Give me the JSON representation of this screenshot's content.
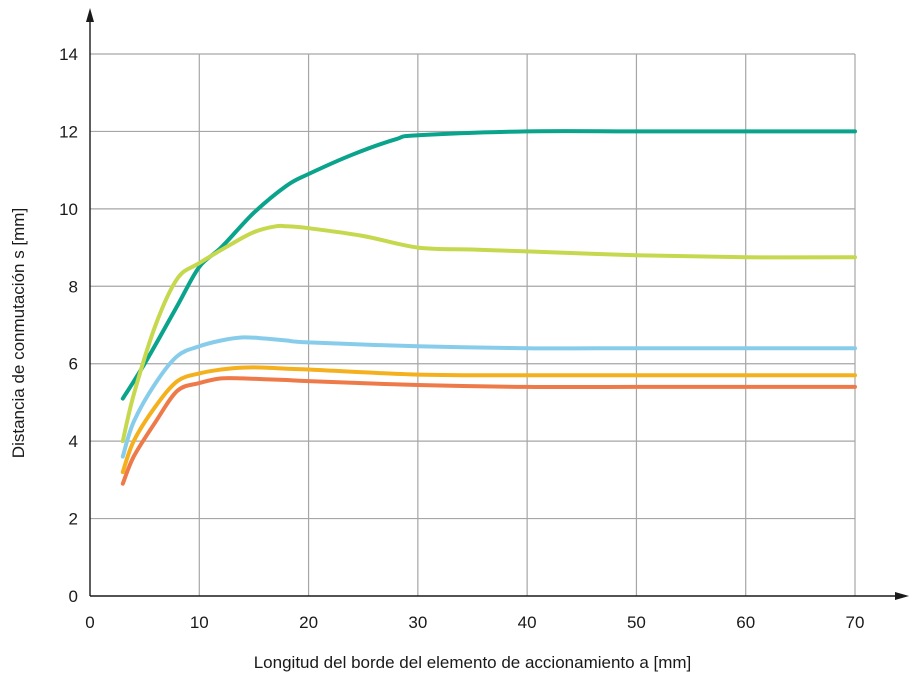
{
  "chart_data": {
    "type": "line",
    "title": "",
    "xlabel": "Longitud del borde del elemento de accionamiento a [mm]",
    "ylabel": "Distancia de conmutación s [mm]",
    "xlim": [
      0,
      70
    ],
    "ylim": [
      0,
      14
    ],
    "x_ticks": [
      0,
      10,
      20,
      30,
      40,
      50,
      60,
      70
    ],
    "y_ticks": [
      0,
      2,
      4,
      6,
      8,
      10,
      12,
      14
    ],
    "grid": true,
    "legend": "none",
    "series": [
      {
        "color": "#0aa38c",
        "x": [
          3,
          5,
          8,
          10,
          12,
          15,
          18,
          20,
          24,
          28,
          30,
          40,
          50,
          60,
          70
        ],
        "y": [
          5.1,
          6.0,
          7.5,
          8.5,
          9.0,
          9.9,
          10.6,
          10.9,
          11.4,
          11.8,
          11.9,
          12.0,
          12.0,
          12.0,
          12.0
        ]
      },
      {
        "color": "#c6d84e",
        "x": [
          3,
          4,
          6,
          8,
          10,
          13,
          15,
          17,
          18,
          20,
          25,
          30,
          35,
          40,
          50,
          60,
          70
        ],
        "y": [
          4.0,
          5.2,
          7.0,
          8.2,
          8.6,
          9.1,
          9.4,
          9.55,
          9.55,
          9.5,
          9.3,
          9.0,
          8.95,
          8.9,
          8.8,
          8.75,
          8.75
        ]
      },
      {
        "color": "#87cdeb",
        "x": [
          3,
          4,
          6,
          8,
          10,
          12,
          14,
          16,
          18,
          20,
          30,
          40,
          50,
          60,
          70
        ],
        "y": [
          3.6,
          4.5,
          5.5,
          6.2,
          6.45,
          6.6,
          6.68,
          6.65,
          6.6,
          6.55,
          6.45,
          6.4,
          6.4,
          6.4,
          6.4
        ],
        "note": ""
      },
      {
        "color": "#f5b01e",
        "x": [
          3,
          4,
          6,
          8,
          10,
          12,
          14,
          16,
          18,
          20,
          30,
          40,
          50,
          60,
          70
        ],
        "y": [
          3.2,
          4.0,
          4.9,
          5.55,
          5.75,
          5.85,
          5.9,
          5.9,
          5.87,
          5.85,
          5.72,
          5.7,
          5.7,
          5.7,
          5.7
        ]
      },
      {
        "color": "#ee7a4a",
        "x": [
          3,
          4,
          6,
          8,
          10,
          12,
          14,
          16,
          18,
          20,
          30,
          40,
          50,
          60,
          70
        ],
        "y": [
          2.9,
          3.6,
          4.5,
          5.3,
          5.5,
          5.62,
          5.62,
          5.6,
          5.58,
          5.55,
          5.45,
          5.4,
          5.4,
          5.4,
          5.4
        ]
      }
    ]
  }
}
